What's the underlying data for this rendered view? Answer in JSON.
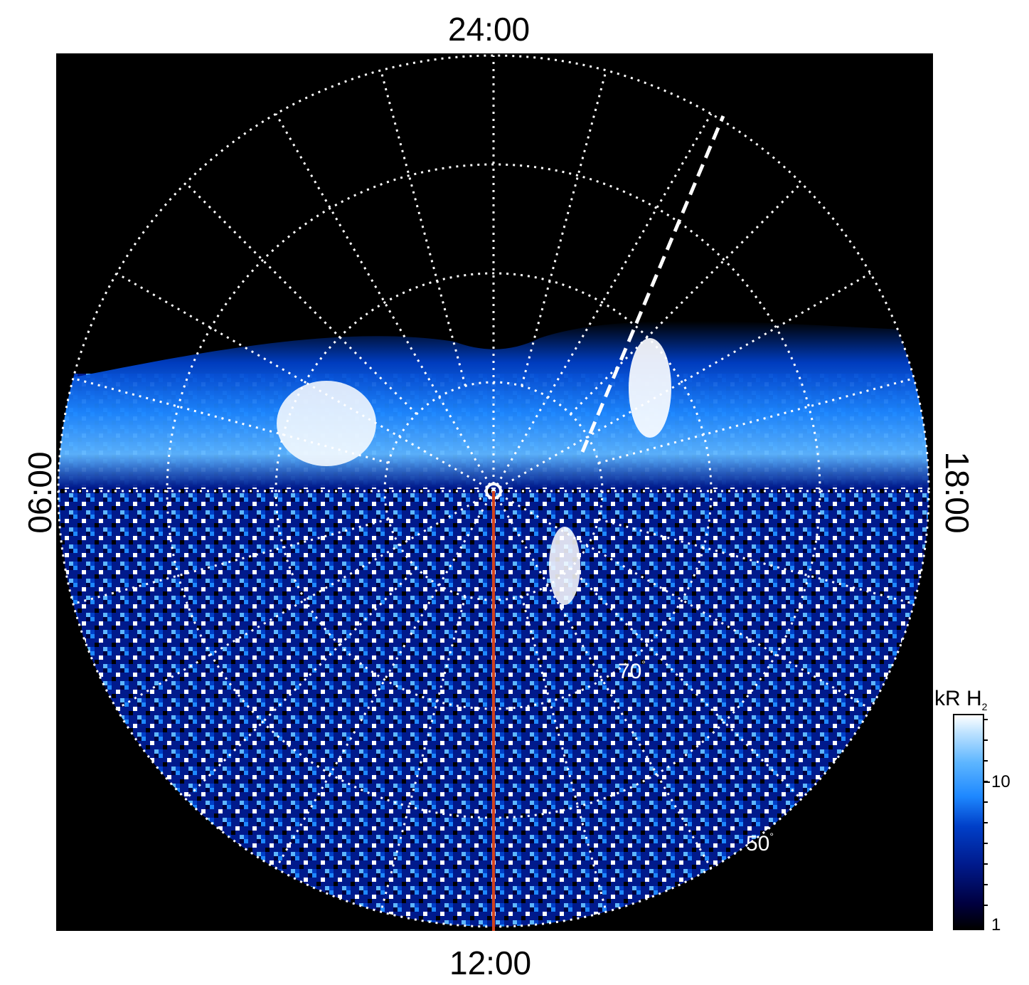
{
  "clock_labels": {
    "top": "24:00",
    "bottom": "12:00",
    "left": "06:00",
    "right": "18:00"
  },
  "latitude_labels": [
    {
      "text": "70",
      "unit": "°"
    },
    {
      "text": "50",
      "unit": "°"
    }
  ],
  "colorbar": {
    "title_main": "kR H",
    "title_sub": "2",
    "ticks": [
      "10",
      "1"
    ]
  },
  "colors": {
    "background": "#000000",
    "grid": "#ffffff",
    "noon_line": "#d2421c",
    "aurora_light": "#ffffff",
    "aurora_mid": "#1e88ff",
    "aurora_dark": "#001a8c"
  }
}
